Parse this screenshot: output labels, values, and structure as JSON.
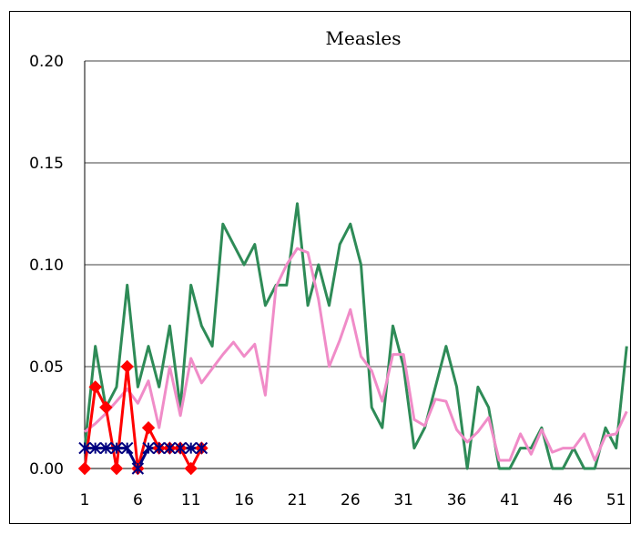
{
  "chart_data": {
    "type": "line",
    "title": "Measles",
    "xlabel": "",
    "ylabel": "",
    "ylim": [
      0,
      0.2
    ],
    "xlim": [
      1,
      52
    ],
    "yticks": [
      "0.00",
      "0.05",
      "0.10",
      "0.15",
      "0.20"
    ],
    "xticks": [
      "1",
      "6",
      "11",
      "16",
      "21",
      "26",
      "31",
      "36",
      "41",
      "46",
      "51"
    ],
    "grid": true,
    "legend": "none",
    "series": [
      {
        "color": "#2e8b57",
        "marker": "none",
        "x": [
          1,
          2,
          3,
          4,
          5,
          6,
          7,
          8,
          9,
          10,
          11,
          12,
          13,
          14,
          15,
          16,
          17,
          18,
          19,
          20,
          21,
          22,
          23,
          24,
          25,
          26,
          27,
          28,
          29,
          30,
          31,
          32,
          33,
          34,
          35,
          36,
          37,
          38,
          39,
          40,
          41,
          42,
          43,
          44,
          45,
          46,
          47,
          48,
          49,
          50,
          51,
          52
        ],
        "values": [
          0.01,
          0.06,
          0.03,
          0.04,
          0.09,
          0.04,
          0.06,
          0.04,
          0.07,
          0.03,
          0.09,
          0.07,
          0.06,
          0.12,
          0.11,
          0.1,
          0.11,
          0.08,
          0.09,
          0.09,
          0.13,
          0.08,
          0.1,
          0.08,
          0.11,
          0.12,
          0.1,
          0.03,
          0.02,
          0.07,
          0.05,
          0.01,
          0.02,
          0.04,
          0.06,
          0.04,
          0.0,
          0.04,
          0.03,
          0.0,
          0.0,
          0.01,
          0.01,
          0.02,
          0.0,
          0.0,
          0.01,
          0.0,
          0.0,
          0.02,
          0.01,
          0.06
        ]
      },
      {
        "color": "#f08cc8",
        "marker": "none",
        "x": [
          1,
          2,
          3,
          4,
          5,
          6,
          7,
          8,
          9,
          10,
          11,
          12,
          13,
          14,
          15,
          16,
          17,
          18,
          19,
          20,
          21,
          22,
          23,
          24,
          25,
          26,
          27,
          28,
          29,
          30,
          31,
          32,
          33,
          34,
          35,
          36,
          37,
          38,
          39,
          40,
          41,
          42,
          43,
          44,
          45,
          46,
          47,
          48,
          49,
          50,
          51,
          52
        ],
        "values": [
          0.018,
          0.022,
          0.027,
          0.033,
          0.039,
          0.032,
          0.043,
          0.02,
          0.05,
          0.026,
          0.054,
          0.042,
          0.049,
          0.056,
          0.062,
          0.055,
          0.061,
          0.036,
          0.089,
          0.1,
          0.108,
          0.106,
          0.083,
          0.05,
          0.063,
          0.078,
          0.055,
          0.048,
          0.033,
          0.056,
          0.056,
          0.024,
          0.021,
          0.034,
          0.033,
          0.019,
          0.013,
          0.018,
          0.025,
          0.004,
          0.004,
          0.017,
          0.007,
          0.019,
          0.008,
          0.01,
          0.01,
          0.017,
          0.004,
          0.016,
          0.017,
          0.028
        ]
      },
      {
        "color": "#ff0000",
        "marker": "diamond",
        "x": [
          1,
          2,
          3,
          4,
          5,
          6,
          7,
          8,
          9,
          10,
          11,
          12
        ],
        "values": [
          0.0,
          0.04,
          0.03,
          0.0,
          0.05,
          0.0,
          0.02,
          0.01,
          0.01,
          0.01,
          0.0,
          0.01
        ]
      },
      {
        "color": "#00007f",
        "marker": "star",
        "x": [
          1,
          2,
          3,
          4,
          5,
          6,
          7,
          8,
          9,
          10,
          11,
          12
        ],
        "values": [
          0.01,
          0.01,
          0.01,
          0.01,
          0.01,
          0.0,
          0.01,
          0.01,
          0.01,
          0.01,
          0.01,
          0.01
        ]
      }
    ]
  }
}
